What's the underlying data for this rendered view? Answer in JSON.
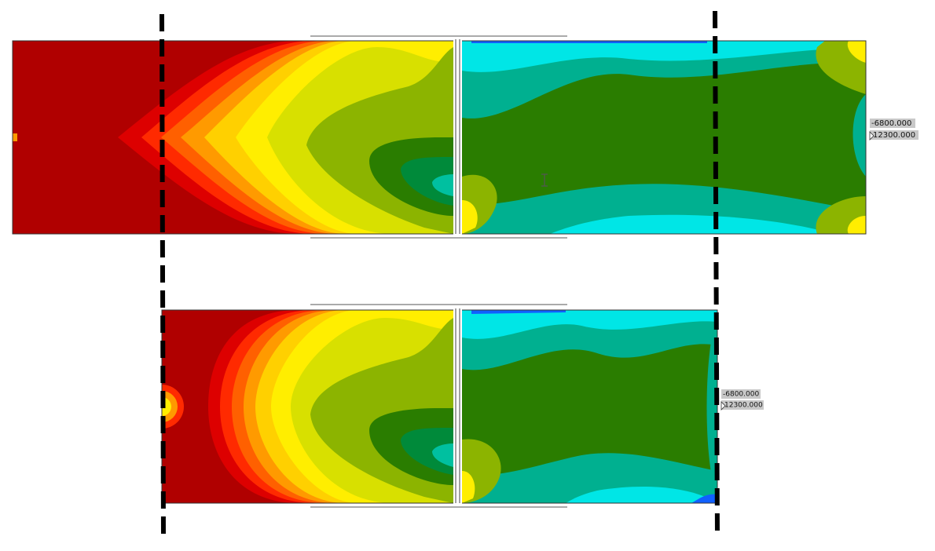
{
  "panels": [
    {
      "labels": [
        "-6800.000",
        "12300.000"
      ]
    },
    {
      "labels": [
        "-6800.000",
        "12300.000"
      ]
    }
  ]
}
